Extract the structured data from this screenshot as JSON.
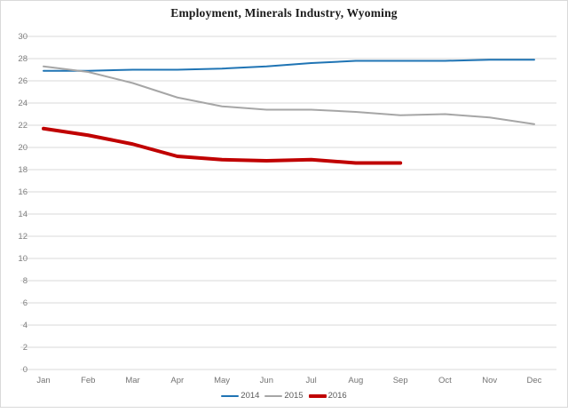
{
  "chart_data": {
    "type": "line",
    "title": "Employment, Minerals Industry, Wyoming",
    "categories": [
      "Jan",
      "Feb",
      "Mar",
      "Apr",
      "May",
      "Jun",
      "Jul",
      "Aug",
      "Sep",
      "Oct",
      "Nov",
      "Dec"
    ],
    "series": [
      {
        "name": "2014",
        "color": "#1F74B4",
        "line_width": 2,
        "values": [
          26.9,
          26.9,
          27.0,
          27.0,
          27.1,
          27.3,
          27.6,
          27.8,
          27.8,
          27.8,
          27.9,
          27.9
        ]
      },
      {
        "name": "2015",
        "color": "#A6A6A6",
        "line_width": 2,
        "values": [
          27.3,
          26.8,
          25.8,
          24.5,
          23.7,
          23.4,
          23.4,
          23.2,
          22.9,
          23.0,
          22.7,
          22.1
        ]
      },
      {
        "name": "2016",
        "color": "#C00000",
        "line_width": 4,
        "values": [
          21.7,
          21.1,
          20.3,
          19.2,
          18.9,
          18.8,
          18.9,
          18.6,
          18.6
        ]
      }
    ],
    "xlabel": "",
    "ylabel": "",
    "ylim": [
      0,
      30
    ],
    "yticks": [
      30,
      28,
      26,
      24,
      22,
      20,
      18,
      16,
      14,
      12,
      10,
      8,
      6,
      4,
      2,
      0
    ],
    "grid": true,
    "legend_position": "bottom"
  },
  "style": {
    "background": "#FFFFFF",
    "frame_border_color": "#D9D9D9",
    "grid_color": "#D9D9D9",
    "tick_label_color": "#7F7F7F",
    "month_label_color": "#737373",
    "legend_text_color": "#595959",
    "title_color": "#1A1A1A"
  }
}
